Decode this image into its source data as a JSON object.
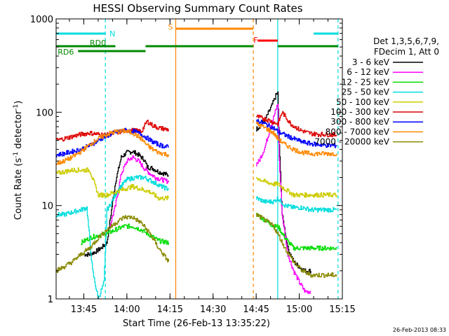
{
  "chart_data": {
    "type": "line",
    "title": "HESSI Observing Summary Count Rates",
    "xlabel": "Start Time (26-Feb-13 13:35:22)",
    "ylabel_parts": [
      "Count Rate (s",
      "-1",
      " detector",
      "-1",
      ")"
    ],
    "yscale": "log",
    "ylim": [
      1,
      1000
    ],
    "xlim": [
      "13:35:22",
      "15:15:00"
    ],
    "x_ticks": [
      "13:45",
      "14:00",
      "14:15",
      "14:30",
      "14:45",
      "15:00",
      "15:15"
    ],
    "y_ticks": [
      "1",
      "10",
      "100",
      "1000"
    ],
    "timestamp": "26-Feb-2013 08:33",
    "legend": {
      "header": [
        "Det 1,3,5,6,7,9,",
        "FDecim 1, Att 0"
      ],
      "position": "right",
      "entries": [
        {
          "label": "3 - 6 keV",
          "color": "#000000"
        },
        {
          "label": "6 - 12 keV",
          "color": "#ff00ff"
        },
        {
          "label": "12 - 25 keV",
          "color": "#00dd00"
        },
        {
          "label": "25 - 50 keV",
          "color": "#00dddd"
        },
        {
          "label": "50 - 100 keV",
          "color": "#cccc00"
        },
        {
          "label": "100 - 300 keV",
          "color": "#dd0000"
        },
        {
          "label": "300 - 800 keV",
          "color": "#0000ff"
        },
        {
          "label": "800 - 7000 keV",
          "color": "#ff8800"
        },
        {
          "label": "7000 - 20000 keV",
          "color": "#888800"
        }
      ]
    },
    "flag_bars": [
      {
        "label": "N",
        "color": "#00dddd",
        "segments": [
          [
            "13:35:22",
            "13:52:30"
          ],
          [
            "15:05:00",
            "15:13:30"
          ]
        ]
      },
      {
        "label": "S",
        "color": "#ff8800",
        "segments": [
          [
            "14:17:00",
            "14:44:00"
          ]
        ]
      },
      {
        "label": "F",
        "color": "#ff0000",
        "segments": [
          [
            "14:45:30",
            "14:52:30"
          ]
        ]
      },
      {
        "label": "RD0",
        "color": "#008800",
        "segments": [
          [
            "13:35:22",
            "13:56:00"
          ],
          [
            "14:06:30",
            "14:44:00"
          ],
          [
            "14:52:30",
            "15:13:30"
          ]
        ]
      },
      {
        "label": "RD6",
        "color": "#008800",
        "segments": [
          [
            "13:43:00",
            "14:06:30"
          ]
        ]
      }
    ],
    "vlines": [
      {
        "time": "13:52:30",
        "color": "#00dddd",
        "style": "dashed"
      },
      {
        "time": "14:17:00",
        "color": "#ff8800",
        "style": "solid"
      },
      {
        "time": "14:44:00",
        "color": "#ff8800",
        "style": "dashed"
      },
      {
        "time": "14:52:30",
        "color": "#00dddd",
        "style": "solid"
      },
      {
        "time": "15:13:30",
        "color": "#00dddd",
        "style": "dashed"
      }
    ],
    "series": [
      {
        "name": "3 - 6 keV",
        "color": "#000000",
        "segments": [
          {
            "x": [
              "13:45:00",
              "13:47:00",
              "13:49:00",
              "13:51:00",
              "13:53:00",
              "13:56:00",
              "13:58:00",
              "14:00:00",
              "14:02:00",
              "14:04:00",
              "14:06:00",
              "14:07:00",
              "14:09:00",
              "14:11:00",
              "14:13:00",
              "14:14:30"
            ],
            "y": [
              3,
              3,
              3.2,
              3.5,
              4,
              18,
              33,
              37,
              38,
              35,
              31,
              26,
              25,
              23,
              22,
              21
            ]
          },
          {
            "x": [
              "14:45:00",
              "14:46:00",
              "14:47:00",
              "14:48:00",
              "14:49:00",
              "14:50:00",
              "14:51:00",
              "14:52:00",
              "14:52:30",
              "14:53:00",
              "14:54:00",
              "14:56:00",
              "14:58:00",
              "15:00:00",
              "15:02:00",
              "15:04:00"
            ],
            "y": [
              66,
              70,
              76,
              82,
              95,
              110,
              130,
              155,
              160,
              45,
              8,
              3.5,
              2.5,
              2.2,
              2,
              2
            ]
          }
        ]
      },
      {
        "name": "6 - 12 keV",
        "color": "#ff00ff",
        "segments": [
          {
            "x": [
              "13:54:00",
              "13:56:00",
              "13:58:00",
              "14:00:00",
              "14:02:00",
              "14:04:00",
              "14:06:00",
              "14:08:00",
              "14:10:00",
              "14:12:00",
              "14:14:30"
            ],
            "y": [
              6,
              10,
              22,
              30,
              33,
              30,
              25,
              22,
              20,
              19,
              18
            ]
          },
          {
            "x": [
              "14:45:00",
              "14:46:00",
              "14:48:00",
              "14:50:00",
              "14:52:00",
              "14:52:30",
              "14:53:00",
              "14:54:00",
              "14:56:00",
              "14:58:00",
              "15:00:00",
              "15:02:00",
              "15:04:00"
            ],
            "y": [
              28,
              30,
              42,
              70,
              110,
              125,
              30,
              8,
              3,
              2,
              1.5,
              1.2,
              1.2
            ]
          }
        ]
      },
      {
        "name": "12 - 25 keV",
        "color": "#00dd00",
        "segments": [
          {
            "x": [
              "13:44:00",
              "13:47:00",
              "13:50:00",
              "13:53:00",
              "13:56:00",
              "13:59:00",
              "14:02:00",
              "14:05:00",
              "14:08:00",
              "14:11:00",
              "14:14:30"
            ],
            "y": [
              4,
              4.5,
              4.8,
              5,
              5.5,
              6,
              6,
              5.5,
              4.8,
              4.2,
              4
            ]
          },
          {
            "x": [
              "14:45:00",
              "14:48:00",
              "14:51:00",
              "14:52:30",
              "14:55:00",
              "14:58:00",
              "15:01:00",
              "15:04:00",
              "15:07:00",
              "15:10:00",
              "15:13:00"
            ],
            "y": [
              8,
              7,
              6,
              6,
              4.5,
              3.5,
              3.5,
              3.5,
              3.5,
              3.5,
              3.5
            ]
          }
        ]
      },
      {
        "name": "25 - 50 keV",
        "color": "#00dddd",
        "segments": [
          {
            "x": [
              "13:35:22",
              "13:38:00",
              "13:41:00",
              "13:44:00",
              "13:46:00",
              "13:48:00",
              "13:50:00",
              "13:52:00",
              "13:53:00",
              "13:54:00",
              "13:57:00",
              "14:00:00",
              "14:03:00",
              "14:06:00",
              "14:09:00",
              "14:12:00",
              "14:14:30"
            ],
            "y": [
              8,
              8,
              8.5,
              9,
              9.5,
              2,
              1,
              1.5,
              9,
              10,
              15,
              19,
              20,
              20,
              18,
              16,
              15
            ]
          },
          {
            "x": [
              "14:45:00",
              "14:48:00",
              "14:51:00",
              "14:52:30",
              "14:55:00",
              "14:58:00",
              "15:01:00",
              "15:04:00",
              "15:07:00",
              "15:10:00",
              "15:13:00"
            ],
            "y": [
              12,
              11,
              11,
              12,
              10,
              9.5,
              9.5,
              9,
              9,
              9,
              9
            ]
          }
        ]
      },
      {
        "name": "50 - 100 keV",
        "color": "#cccc00",
        "segments": [
          {
            "x": [
              "13:35:22",
              "13:38:00",
              "13:41:00",
              "13:44:00",
              "13:47:00",
              "13:50:00",
              "13:53:00",
              "13:56:00",
              "13:59:00",
              "14:02:00",
              "14:05:00",
              "14:08:00",
              "14:11:00",
              "14:14:30"
            ],
            "y": [
              22,
              23,
              24,
              24,
              24,
              13,
              13,
              14,
              15,
              16,
              15,
              14,
              12,
              12
            ]
          },
          {
            "x": [
              "14:45:00",
              "14:48:00",
              "14:51:00",
              "14:52:30",
              "14:55:00",
              "14:58:00",
              "15:01:00",
              "15:04:00",
              "15:07:00",
              "15:10:00",
              "15:13:00"
            ],
            "y": [
              20,
              18,
              17,
              17,
              15,
              13,
              13,
              13,
              13,
              13,
              13
            ]
          }
        ]
      },
      {
        "name": "100 - 300 keV",
        "color": "#dd0000",
        "segments": [
          {
            "x": [
              "13:35:22",
              "13:38:00",
              "13:41:00",
              "13:44:00",
              "13:47:00",
              "13:50:00",
              "13:53:00",
              "13:56:00",
              "13:59:00",
              "14:02:00",
              "14:05:00",
              "14:07:00",
              "14:09:00",
              "14:11:00",
              "14:14:30"
            ],
            "y": [
              50,
              52,
              55,
              58,
              60,
              58,
              57,
              60,
              63,
              64,
              62,
              80,
              72,
              68,
              65
            ]
          },
          {
            "x": [
              "14:45:00",
              "14:48:00",
              "14:51:00",
              "14:52:30",
              "14:54:00",
              "14:57:00",
              "15:00:00",
              "15:03:00",
              "15:06:00",
              "15:09:00",
              "15:13:00"
            ],
            "y": [
              90,
              85,
              78,
              75,
              100,
              75,
              65,
              60,
              58,
              58,
              57
            ]
          }
        ]
      },
      {
        "name": "300 - 800 keV",
        "color": "#0000ff",
        "segments": [
          {
            "x": [
              "13:35:22",
              "13:38:00",
              "13:41:00",
              "13:44:00",
              "13:47:00",
              "13:50:00",
              "13:53:00",
              "13:56:00",
              "13:59:00",
              "14:02:00",
              "14:05:00",
              "14:07:00",
              "14:09:00",
              "14:11:00",
              "14:14:30"
            ],
            "y": [
              35,
              36,
              38,
              40,
              44,
              50,
              56,
              61,
              64,
              63,
              58,
              53,
              48,
              45,
              42
            ]
          },
          {
            "x": [
              "14:45:00",
              "14:48:00",
              "14:51:00",
              "14:52:30",
              "14:55:00",
              "14:58:00",
              "15:01:00",
              "15:04:00",
              "15:07:00",
              "15:10:00",
              "15:13:00"
            ],
            "y": [
              82,
              75,
              68,
              62,
              57,
              52,
              48,
              46,
              45,
              44,
              44
            ]
          }
        ]
      },
      {
        "name": "800 - 7000 keV",
        "color": "#ff8800",
        "segments": [
          {
            "x": [
              "13:35:22",
              "13:38:00",
              "13:41:00",
              "13:44:00",
              "13:47:00",
              "13:50:00",
              "13:53:00",
              "13:56:00",
              "13:59:00",
              "14:02:00",
              "14:05:00",
              "14:07:00",
              "14:09:00",
              "14:11:00",
              "14:14:30"
            ],
            "y": [
              28,
              30,
              33,
              38,
              45,
              52,
              58,
              62,
              63,
              60,
              52,
              44,
              40,
              37,
              35
            ]
          },
          {
            "x": [
              "14:45:00",
              "14:48:00",
              "14:51:00",
              "14:52:30",
              "14:55:00",
              "14:58:00",
              "15:01:00",
              "15:04:00",
              "15:07:00",
              "15:10:00",
              "15:13:00"
            ],
            "y": [
              75,
              68,
              60,
              52,
              45,
              40,
              37,
              36,
              36,
              36,
              36
            ]
          }
        ]
      },
      {
        "name": "7000 - 20000 keV",
        "color": "#888800",
        "segments": [
          {
            "x": [
              "13:35:22",
              "13:38:00",
              "13:41:00",
              "13:44:00",
              "13:47:00",
              "13:50:00",
              "13:53:00",
              "13:56:00",
              "13:59:00",
              "14:02:00",
              "14:05:00",
              "14:08:00",
              "14:11:00",
              "14:14:30"
            ],
            "y": [
              2,
              2.2,
              2.5,
              3,
              3.5,
              4.5,
              5.5,
              6.5,
              7.5,
              7.5,
              6.5,
              5,
              3.5,
              2.5
            ]
          },
          {
            "x": [
              "14:45:00",
              "14:48:00",
              "14:51:00",
              "14:52:30",
              "14:55:00",
              "14:58:00",
              "15:01:00",
              "15:04:00",
              "15:07:00",
              "15:10:00",
              "15:13:00"
            ],
            "y": [
              8,
              7,
              6,
              5,
              3.5,
              2.5,
              2,
              1.8,
              1.8,
              1.8,
              1.8
            ]
          }
        ]
      }
    ]
  }
}
